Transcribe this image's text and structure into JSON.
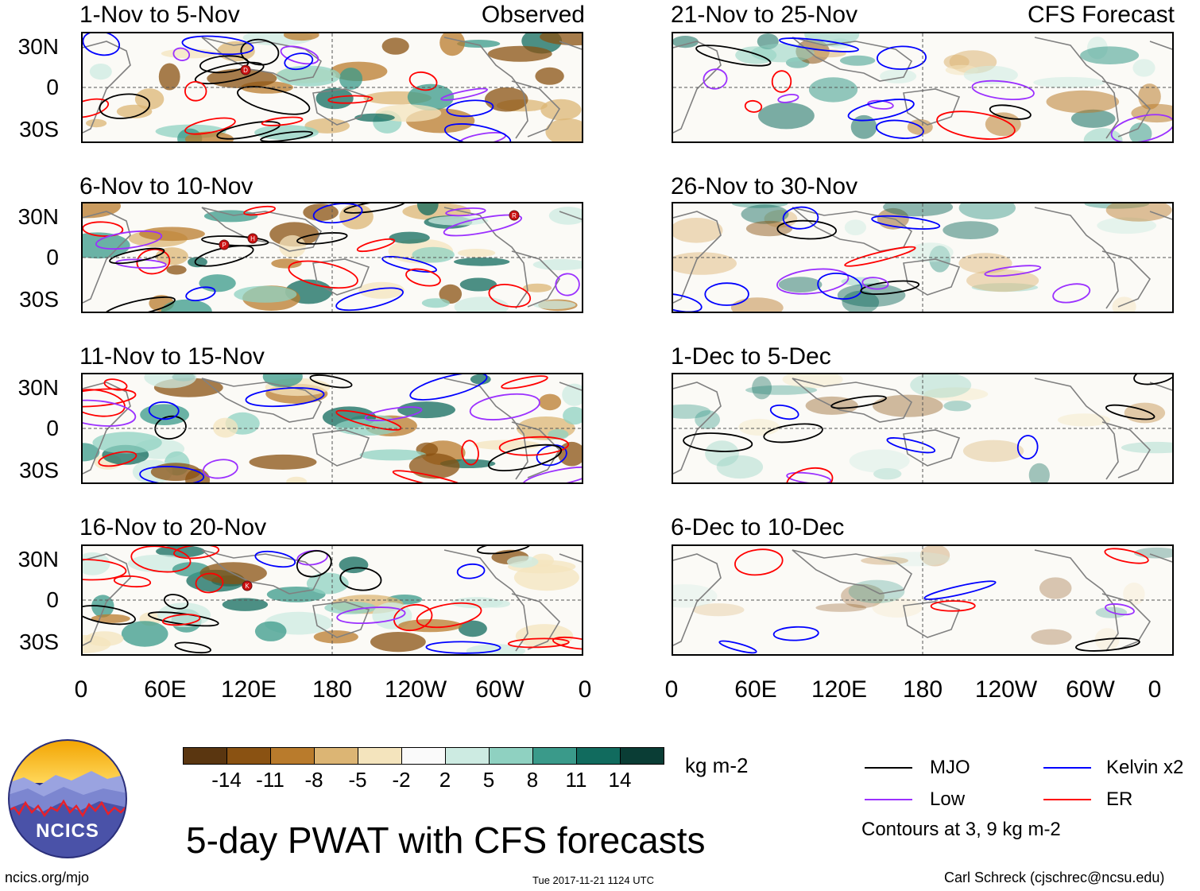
{
  "title": "5-day PWAT with CFS forecasts",
  "units": "kg m-2",
  "observed_label": "Observed",
  "forecast_label": "CFS Forecast",
  "lat_labels": [
    "30N",
    "0",
    "30S"
  ],
  "lon_labels": [
    "0",
    "60E",
    "120E",
    "180",
    "120W",
    "60W",
    "0"
  ],
  "panels_left": [
    {
      "period": "1-Nov to 5-Nov"
    },
    {
      "period": "6-Nov to 10-Nov"
    },
    {
      "period": "11-Nov to 15-Nov"
    },
    {
      "period": "16-Nov to 20-Nov"
    }
  ],
  "panels_right": [
    {
      "period": "21-Nov to 25-Nov"
    },
    {
      "period": "26-Nov to 30-Nov"
    },
    {
      "period": "1-Dec to 5-Dec"
    },
    {
      "period": "6-Dec to 10-Dec"
    }
  ],
  "colorbar": {
    "labels": [
      "-14",
      "-11",
      "-8",
      "-5",
      "-2",
      "2",
      "5",
      "8",
      "11",
      "14"
    ],
    "colors": [
      "#5a3610",
      "#8a5212",
      "#b97b2c",
      "#dcb574",
      "#f4e4bd",
      "#fafafa",
      "#cdebe2",
      "#8fd1c1",
      "#3a9a8a",
      "#116b5e",
      "#0a3d35"
    ]
  },
  "legend": {
    "mjo": "MJO",
    "low": "Low",
    "kelvin": "Kelvin x2",
    "er": "ER",
    "contours_note": "Contours at 3, 9 kg m-2",
    "colors": {
      "mjo": "#000000",
      "low": "#9b30ff",
      "kelvin": "#0000ff",
      "er": "#ff0000"
    }
  },
  "logo_text": "NCICS",
  "footer": {
    "url": "ncics.org/mjo",
    "timestamp": "Tue 2017-11-21 1124 UTC",
    "author": "Carl Schreck (cjschrec@ncsu.edu)"
  },
  "storm_markers": [
    "D",
    "P",
    "H",
    "R",
    "K"
  ]
}
